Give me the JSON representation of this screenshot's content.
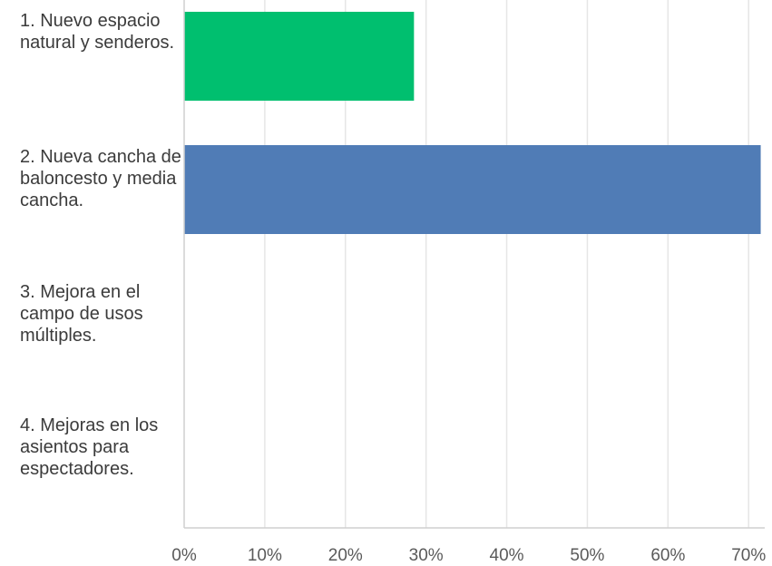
{
  "chart_data": {
    "type": "bar",
    "orientation": "horizontal",
    "categories": [
      "1. Nuevo espacio natural y senderos.",
      "2. Nueva cancha de baloncesto y media cancha.",
      "3. Mejora en el campo de usos múltiples.",
      "4. Mejoras en los asientos para espectadores."
    ],
    "values": [
      28.5,
      71.5,
      0,
      0
    ],
    "bar_colors": [
      "#00bf6f",
      "#507cb6",
      "#507cb6",
      "#507cb6"
    ],
    "xlim": [
      0,
      72
    ],
    "x_ticks": [
      0,
      10,
      20,
      30,
      40,
      50,
      60,
      70
    ],
    "x_tick_labels": [
      "0%",
      "10%",
      "20%",
      "30%",
      "40%",
      "50%",
      "60%",
      "70%"
    ],
    "grid": true,
    "grid_color": "#e6e6e6",
    "axis_color": "#cfcfcf",
    "title": "",
    "xlabel": "",
    "ylabel": ""
  }
}
